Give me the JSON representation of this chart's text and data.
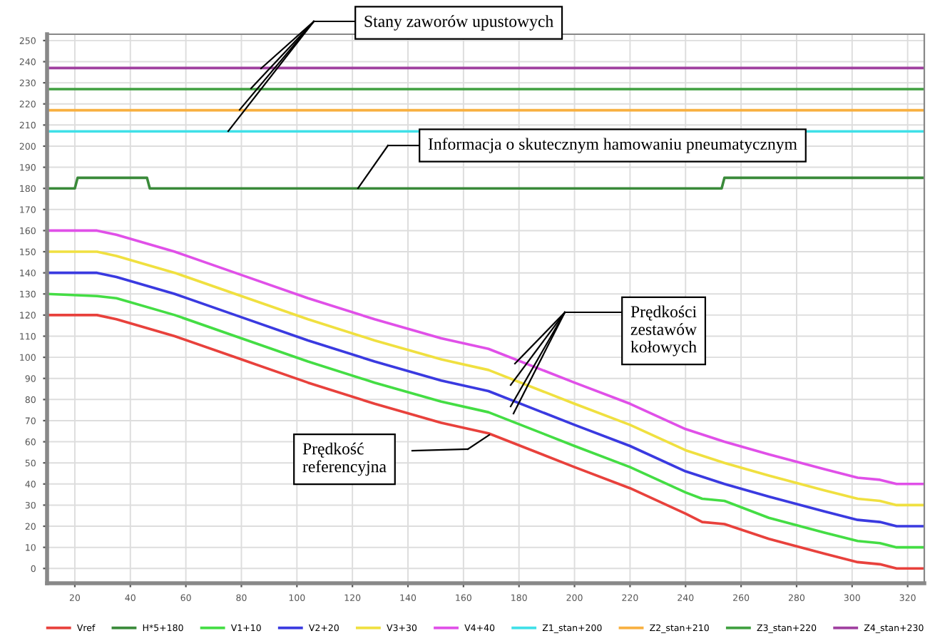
{
  "chart_data": {
    "type": "line",
    "annotations": [
      "Stany zaworów upustowych",
      "Informacja o skutecznym hamowaniu pneumatycznym",
      "Prędkości\nzestawów\nkołowych",
      "Prędkość\nreferencyjna"
    ],
    "xlim": [
      10,
      326
    ],
    "xticks": [
      20,
      40,
      60,
      80,
      100,
      120,
      140,
      160,
      180,
      200,
      220,
      240,
      260,
      280,
      300,
      320
    ],
    "ylim": [
      -7,
      253
    ],
    "yticks": [
      0,
      10,
      20,
      30,
      40,
      50,
      60,
      70,
      80,
      90,
      100,
      110,
      120,
      130,
      140,
      150,
      160,
      170,
      180,
      190,
      200,
      210,
      220,
      230,
      240,
      250
    ],
    "grid": true,
    "legend": "bottom",
    "marker": "none",
    "line_style": "solid",
    "series": [
      {
        "name": "Vref",
        "color": "#e8413c",
        "x": [
          10,
          28,
          35,
          56,
          80,
          104,
          128,
          152,
          169,
          200,
          220,
          240,
          246,
          254,
          270,
          290,
          302,
          310,
          316,
          326
        ],
        "values": [
          120,
          120,
          118,
          110,
          99,
          88,
          78,
          69,
          64,
          48,
          38,
          26,
          22,
          21,
          14,
          7,
          3,
          2,
          0,
          0
        ]
      },
      {
        "name": "H*5+180",
        "color": "#3a8a3a",
        "x": [
          10,
          20,
          21,
          46,
          47,
          253,
          254,
          326
        ],
        "values": [
          180,
          180,
          185,
          185,
          180,
          180,
          185,
          185
        ]
      },
      {
        "name": "V1+10",
        "color": "#44dd44",
        "x": [
          10,
          28,
          35,
          56,
          80,
          104,
          128,
          152,
          169,
          200,
          220,
          240,
          246,
          254,
          270,
          290,
          302,
          310,
          316,
          326
        ],
        "values": [
          130,
          129,
          128,
          120,
          109,
          98,
          88,
          79,
          74,
          58,
          48,
          36,
          33,
          32,
          24,
          17,
          13,
          12,
          10,
          10
        ]
      },
      {
        "name": "V2+20",
        "color": "#3a3ae0",
        "x": [
          10,
          28,
          35,
          56,
          80,
          104,
          128,
          152,
          169,
          200,
          220,
          240,
          254,
          270,
          290,
          302,
          310,
          316,
          326
        ],
        "values": [
          140,
          140,
          138,
          130,
          119,
          108,
          98,
          89,
          84,
          68,
          58,
          46,
          40,
          34,
          27,
          23,
          22,
          20,
          20
        ]
      },
      {
        "name": "V3+30",
        "color": "#f0e040",
        "x": [
          10,
          28,
          35,
          56,
          80,
          104,
          128,
          152,
          169,
          200,
          220,
          240,
          254,
          270,
          290,
          302,
          310,
          316,
          326
        ],
        "values": [
          150,
          150,
          148,
          140,
          129,
          118,
          108,
          99,
          94,
          78,
          68,
          56,
          50,
          44,
          37,
          33,
          32,
          30,
          30
        ]
      },
      {
        "name": "V4+40",
        "color": "#e050e8",
        "x": [
          10,
          28,
          35,
          56,
          80,
          104,
          128,
          152,
          169,
          200,
          220,
          240,
          254,
          270,
          290,
          302,
          310,
          316,
          326
        ],
        "values": [
          160,
          160,
          158,
          150,
          139,
          128,
          118,
          109,
          104,
          88,
          78,
          66,
          60,
          54,
          47,
          43,
          42,
          40,
          40
        ]
      },
      {
        "name": "Z1_stan+200",
        "color": "#40e0e8",
        "x": [
          10,
          326
        ],
        "values": [
          207,
          207
        ]
      },
      {
        "name": "Z2_stan+210",
        "color": "#f8b040",
        "x": [
          10,
          326
        ],
        "values": [
          217,
          217
        ]
      },
      {
        "name": "Z3_stan+220",
        "color": "#40a040",
        "x": [
          10,
          326
        ],
        "values": [
          227,
          227
        ]
      },
      {
        "name": "Z4_stan+230",
        "color": "#a040a0",
        "x": [
          10,
          326
        ],
        "values": [
          237,
          237
        ]
      }
    ]
  }
}
